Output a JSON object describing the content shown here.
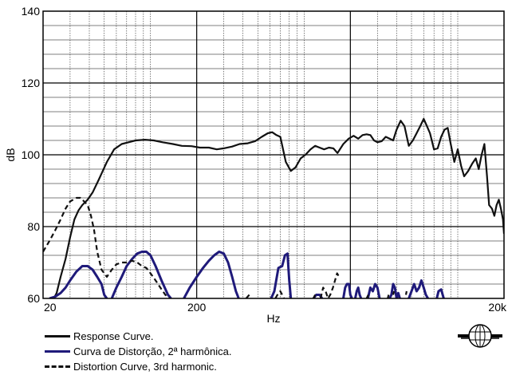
{
  "chart_data": {
    "type": "line",
    "xlabel": "Hz",
    "ylabel": "dB",
    "xscale": "log",
    "xlim": [
      20,
      20000
    ],
    "ylim": [
      60,
      140
    ],
    "x_ticks": [
      20,
      200,
      20000
    ],
    "x_tick_labels": [
      "20",
      "200",
      "20k"
    ],
    "y_ticks": [
      60,
      80,
      100,
      120,
      140
    ],
    "y_tick_labels": [
      "60",
      "80",
      "100",
      "120",
      "140"
    ],
    "grid": true,
    "legend_position": "bottom-left",
    "series": [
      {
        "name": "Response Curve.",
        "color": "#111111",
        "style": "solid",
        "points": [
          [
            23.5,
            60
          ],
          [
            24.5,
            61.5
          ],
          [
            26,
            66
          ],
          [
            28,
            71
          ],
          [
            30,
            77
          ],
          [
            32,
            82
          ],
          [
            34,
            84.5
          ],
          [
            36,
            86
          ],
          [
            39,
            87.5
          ],
          [
            42,
            89.5
          ],
          [
            46,
            93
          ],
          [
            52,
            98
          ],
          [
            58,
            101.5
          ],
          [
            65,
            103
          ],
          [
            72,
            103.5
          ],
          [
            80,
            104
          ],
          [
            92,
            104.2
          ],
          [
            105,
            104
          ],
          [
            120,
            103.5
          ],
          [
            140,
            103
          ],
          [
            160,
            102.5
          ],
          [
            185,
            102.4
          ],
          [
            210,
            102
          ],
          [
            240,
            102
          ],
          [
            270,
            101.5
          ],
          [
            300,
            101.8
          ],
          [
            340,
            102.3
          ],
          [
            380,
            103
          ],
          [
            430,
            103.2
          ],
          [
            480,
            103.8
          ],
          [
            530,
            105
          ],
          [
            580,
            106
          ],
          [
            620,
            106.3
          ],
          [
            660,
            105.5
          ],
          [
            700,
            105
          ],
          [
            760,
            98
          ],
          [
            820,
            95.5
          ],
          [
            880,
            96.5
          ],
          [
            950,
            99
          ],
          [
            1020,
            100
          ],
          [
            1100,
            101.5
          ],
          [
            1180,
            102.5
          ],
          [
            1260,
            102
          ],
          [
            1350,
            101.5
          ],
          [
            1450,
            102
          ],
          [
            1550,
            101.8
          ],
          [
            1650,
            100.5
          ],
          [
            1800,
            103
          ],
          [
            1950,
            104.5
          ],
          [
            2100,
            105.3
          ],
          [
            2250,
            104.5
          ],
          [
            2400,
            105.5
          ],
          [
            2550,
            105.7
          ],
          [
            2700,
            105.5
          ],
          [
            2850,
            104
          ],
          [
            3000,
            103.5
          ],
          [
            3200,
            103.8
          ],
          [
            3400,
            105
          ],
          [
            3600,
            104.5
          ],
          [
            3800,
            104
          ],
          [
            4000,
            107
          ],
          [
            4250,
            109.5
          ],
          [
            4500,
            108
          ],
          [
            4800,
            102.5
          ],
          [
            5100,
            104
          ],
          [
            5400,
            106
          ],
          [
            5700,
            108
          ],
          [
            6000,
            110
          ],
          [
            6300,
            108
          ],
          [
            6600,
            106
          ],
          [
            7000,
            101.5
          ],
          [
            7400,
            101.8
          ],
          [
            7800,
            105
          ],
          [
            8200,
            107
          ],
          [
            8600,
            107.5
          ],
          [
            9000,
            103
          ],
          [
            9500,
            98
          ],
          [
            10000,
            101.5
          ],
          [
            10500,
            97
          ],
          [
            11000,
            94
          ],
          [
            11700,
            95.5
          ],
          [
            12400,
            97.5
          ],
          [
            13100,
            99
          ],
          [
            13700,
            96
          ],
          [
            14300,
            100
          ],
          [
            14900,
            103
          ],
          [
            15500,
            94
          ],
          [
            16000,
            86
          ],
          [
            16700,
            85
          ],
          [
            17300,
            83
          ],
          [
            17900,
            86
          ],
          [
            18500,
            87.5
          ],
          [
            19100,
            85
          ],
          [
            19700,
            82
          ],
          [
            20000,
            78
          ]
        ]
      },
      {
        "name": "Curva de Distorção, 2ª harmônica.",
        "color": "#1f1a7a",
        "style": "solid",
        "segments": [
          [
            [
              22,
              60
            ],
            [
              24,
              60.5
            ],
            [
              26,
              61.5
            ],
            [
              28,
              63
            ],
            [
              30,
              65
            ],
            [
              33,
              67.5
            ],
            [
              36,
              69
            ],
            [
              39,
              69
            ],
            [
              42,
              68
            ],
            [
              45,
              66
            ],
            [
              48,
              64
            ],
            [
              50,
              61
            ],
            [
              52,
              60
            ]
          ],
          [
            [
              56,
              60
            ],
            [
              60,
              63
            ],
            [
              65,
              66
            ],
            [
              70,
              69
            ],
            [
              76,
              71
            ],
            [
              82,
              72.5
            ],
            [
              88,
              73
            ],
            [
              94,
              73
            ],
            [
              100,
              72
            ],
            [
              108,
              69
            ],
            [
              118,
              65
            ],
            [
              130,
              61
            ],
            [
              136,
              60
            ]
          ],
          [
            [
              165,
              60
            ],
            [
              180,
              63
            ],
            [
              200,
              66
            ],
            [
              220,
              68.5
            ],
            [
              240,
              70.5
            ],
            [
              260,
              72
            ],
            [
              280,
              73
            ],
            [
              300,
              72.5
            ],
            [
              320,
              70
            ],
            [
              340,
              66
            ],
            [
              360,
              62
            ],
            [
              375,
              60
            ]
          ],
          [
            [
              610,
              60
            ],
            [
              640,
              62
            ],
            [
              680,
              68.5
            ],
            [
              720,
              69
            ],
            [
              750,
              72
            ],
            [
              780,
              72.5
            ],
            [
              800,
              65
            ],
            [
              820,
              60
            ]
          ],
          [
            [
              1150,
              60
            ],
            [
              1200,
              61
            ],
            [
              1260,
              61
            ],
            [
              1310,
              60
            ]
          ],
          [
            [
              1800,
              60
            ],
            [
              1850,
              63
            ],
            [
              1900,
              64
            ],
            [
              1960,
              64
            ],
            [
              2000,
              61
            ],
            [
              2050,
              60
            ]
          ],
          [
            [
              2150,
              60
            ],
            [
              2200,
              62
            ],
            [
              2250,
              63
            ],
            [
              2300,
              61
            ],
            [
              2350,
              60
            ]
          ],
          [
            [
              2600,
              60
            ],
            [
              2700,
              63
            ],
            [
              2800,
              62
            ],
            [
              2900,
              64
            ],
            [
              3000,
              63
            ],
            [
              3100,
              60
            ]
          ],
          [
            [
              3600,
              60
            ],
            [
              3700,
              61
            ],
            [
              3800,
              64
            ],
            [
              3900,
              63
            ],
            [
              4000,
              60
            ],
            [
              4100,
              61.5
            ],
            [
              4200,
              60
            ]
          ],
          [
            [
              4800,
              60
            ],
            [
              5000,
              62
            ],
            [
              5200,
              64
            ],
            [
              5400,
              62
            ],
            [
              5600,
              63
            ],
            [
              5800,
              65
            ],
            [
              6000,
              63
            ],
            [
              6200,
              61
            ],
            [
              6400,
              60
            ]
          ],
          [
            [
              7300,
              60
            ],
            [
              7500,
              62
            ],
            [
              7800,
              62.5
            ],
            [
              8100,
              60
            ]
          ]
        ]
      },
      {
        "name": "Distortion Curve, 3rd harmonic.",
        "color": "#111111",
        "style": "dashed",
        "points": [
          [
            20,
            73
          ],
          [
            22,
            76
          ],
          [
            24,
            79
          ],
          [
            26,
            82
          ],
          [
            28,
            85
          ],
          [
            30,
            87
          ],
          [
            33,
            88
          ],
          [
            35,
            88
          ],
          [
            37,
            87
          ],
          [
            39,
            86
          ],
          [
            41,
            83
          ],
          [
            43,
            79
          ],
          [
            45,
            73
          ],
          [
            48,
            68
          ],
          [
            52,
            66
          ],
          [
            56,
            68
          ],
          [
            60,
            69.5
          ],
          [
            65,
            70
          ],
          [
            70,
            70
          ],
          [
            76,
            70.5
          ],
          [
            82,
            70
          ],
          [
            88,
            69
          ],
          [
            94,
            68.5
          ],
          [
            100,
            67
          ],
          [
            108,
            65
          ],
          [
            116,
            63
          ],
          [
            125,
            61
          ],
          [
            133,
            60
          ]
        ],
        "extra_segments": [
          [
            [
              420,
              60
            ],
            [
              440,
              61
            ]
          ],
          [
            [
              650,
              60
            ],
            [
              680,
              61.5
            ],
            [
              700,
              62
            ],
            [
              720,
              61
            ],
            [
              740,
              60
            ]
          ],
          [
            [
              1150,
              60
            ],
            [
              1180,
              61
            ]
          ],
          [
            [
              1280,
              60
            ],
            [
              1330,
              63
            ],
            [
              1380,
              62
            ],
            [
              1430,
              60
            ],
            [
              1480,
              61
            ],
            [
              1540,
              63
            ],
            [
              1590,
              65
            ],
            [
              1640,
              67
            ],
            [
              1690,
              66
            ]
          ],
          [
            [
              2550,
              60
            ],
            [
              2620,
              61
            ]
          ],
          [
            [
              3500,
              60
            ],
            [
              3550,
              61
            ]
          ],
          [
            [
              3800,
              61
            ],
            [
              3850,
              62
            ]
          ],
          [
            [
              4600,
              61
            ],
            [
              4650,
              62
            ]
          ]
        ]
      }
    ]
  },
  "legend": {
    "items": [
      {
        "label": "Response Curve."
      },
      {
        "label": "Curva de Distorção, 2ª harmônica."
      },
      {
        "label": "Distortion Curve, 3rd harmonic."
      }
    ]
  },
  "logo": {
    "name": "globe-logo-icon"
  }
}
